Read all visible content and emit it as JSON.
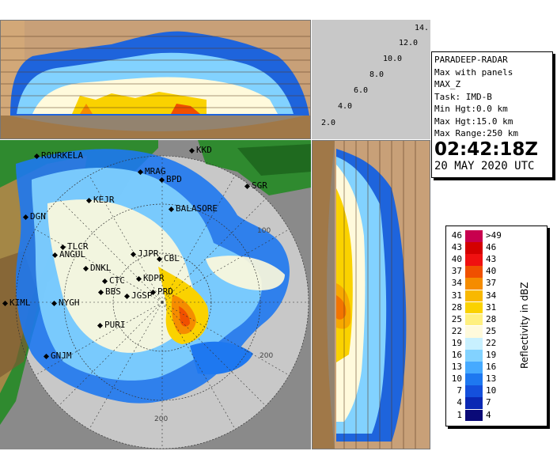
{
  "info": {
    "radar": "PARADEEP-RADAR",
    "product": "Max with panels",
    "field": "MAX_Z",
    "task": "Task: IMD-B",
    "min_hgt": "Min Hgt:0.0 km",
    "max_hgt": "Max Hgt:15.0 km",
    "max_range": "Max Range:250 km",
    "time": "02:42:18Z",
    "date": "20 MAY 2020 UTC"
  },
  "legend": {
    "title": "Reflectivity in dBZ",
    "rows": [
      {
        "low": "46",
        "high": ">49",
        "color": "#c8004e"
      },
      {
        "low": "43",
        "high": "46",
        "color": "#d40000"
      },
      {
        "low": "40",
        "high": "43",
        "color": "#f01010"
      },
      {
        "low": "37",
        "high": "40",
        "color": "#f05000"
      },
      {
        "low": "34",
        "high": "37",
        "color": "#f58c00"
      },
      {
        "low": "31",
        "high": "34",
        "color": "#f8b800"
      },
      {
        "low": "28",
        "high": "31",
        "color": "#fad200"
      },
      {
        "low": "25",
        "high": "28",
        "color": "#fff080"
      },
      {
        "low": "22",
        "high": "25",
        "color": "#fffadc"
      },
      {
        "low": "19",
        "high": "22",
        "color": "#c8f0ff"
      },
      {
        "low": "16",
        "high": "19",
        "color": "#82d2ff"
      },
      {
        "low": "13",
        "high": "16",
        "color": "#46aaff"
      },
      {
        "low": "10",
        "high": "13",
        "color": "#1e78f0"
      },
      {
        "low": "7",
        "high": "10",
        "color": "#1450dc"
      },
      {
        "low": "4",
        "high": "7",
        "color": "#0a28b4"
      },
      {
        "low": "1",
        "high": "4",
        "color": "#0a0a78"
      }
    ]
  },
  "height_axis": [
    "2.0",
    "4.0",
    "6.0",
    "8.0",
    "10.0",
    "12.0",
    "14."
  ],
  "ring_labels": [
    "100",
    "200",
    "200"
  ],
  "cities": [
    {
      "name": "ROURKELA"
    },
    {
      "name": "KKD"
    },
    {
      "name": "MRAG"
    },
    {
      "name": "BPD"
    },
    {
      "name": "SGR"
    },
    {
      "name": "KEJR"
    },
    {
      "name": "BALASORE"
    },
    {
      "name": "DGN"
    },
    {
      "name": "TLCR"
    },
    {
      "name": "ANGUL"
    },
    {
      "name": "JJPR"
    },
    {
      "name": "CBL"
    },
    {
      "name": "DNKL"
    },
    {
      "name": "KDPR"
    },
    {
      "name": "CTC"
    },
    {
      "name": "BBS"
    },
    {
      "name": "JGSP"
    },
    {
      "name": "PRD"
    },
    {
      "name": "KIML"
    },
    {
      "name": "NYGH"
    },
    {
      "name": "PURI"
    },
    {
      "name": "GNJM"
    }
  ],
  "colors": {
    "land_green": "#2f8a2f",
    "land_brown": "#b8864a",
    "sea_gray": "#8a8a8a",
    "range_disk": "#c8c8c8"
  }
}
